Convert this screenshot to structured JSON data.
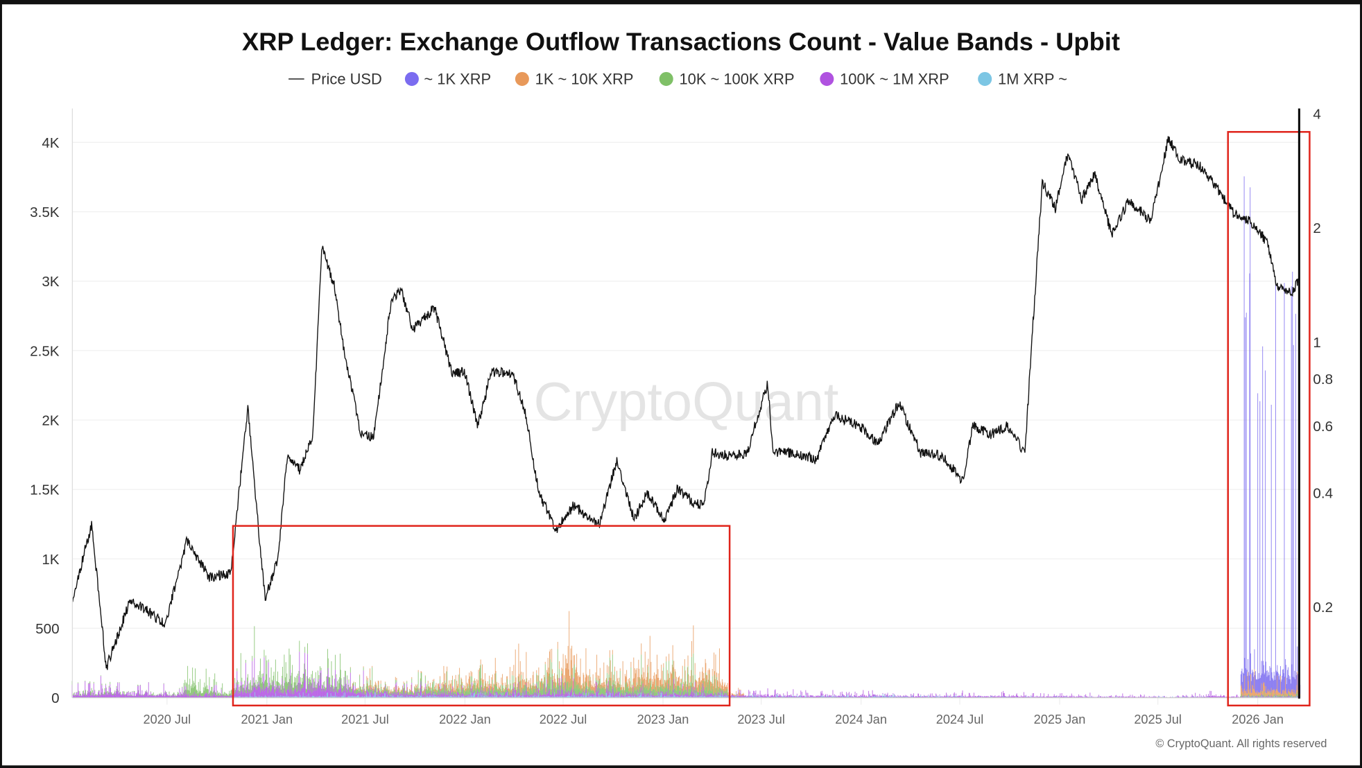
{
  "chart_data": {
    "type": "bar",
    "title": "XRP Ledger: Exchange Outflow Transactions Count - Value Bands - Upbit",
    "legend_position": "top",
    "legend": [
      {
        "name": "Price USD",
        "kind": "line",
        "color": "#111111"
      },
      {
        "name": "~ 1K XRP",
        "kind": "bar",
        "color": "#7b6cf0"
      },
      {
        "name": "1K ~ 10K XRP",
        "kind": "bar",
        "color": "#e8995a"
      },
      {
        "name": "10K ~ 100K XRP",
        "kind": "bar",
        "color": "#7fc067"
      },
      {
        "name": "100K ~ 1M XRP",
        "kind": "bar",
        "color": "#b052e0"
      },
      {
        "name": "1M XRP ~",
        "kind": "bar",
        "color": "#7cc6e4"
      }
    ],
    "x_range": [
      "2020-01-08",
      "2026-03-20"
    ],
    "x_ticks": [
      "2020 Jul",
      "2021 Jan",
      "2021 Jul",
      "2022 Jan",
      "2022 Jul",
      "2023 Jan",
      "2023 Jul",
      "2024 Jan",
      "2024 Jul",
      "2025 Jan",
      "2025 Jul",
      "2026 Jan"
    ],
    "x_tick_dates": [
      "2020-07-01",
      "2021-01-01",
      "2021-07-01",
      "2022-01-01",
      "2022-07-01",
      "2023-01-01",
      "2023-07-01",
      "2024-01-01",
      "2024-07-01",
      "2025-01-01",
      "2025-07-01",
      "2026-01-01"
    ],
    "y_left": {
      "label": "",
      "range": [
        0,
        4000
      ],
      "ticks": [
        "0",
        "500",
        "1K",
        "1.5K",
        "2K",
        "2.5K",
        "3K",
        "3.5K",
        "4K"
      ],
      "tick_values": [
        0,
        500,
        1000,
        1500,
        2000,
        2500,
        3000,
        3500,
        4000
      ],
      "grid": true
    },
    "y_right": {
      "label": "",
      "scale": "log",
      "ticks": [
        "0.2",
        "0.4",
        "0.6",
        "0.8",
        "1",
        "2",
        "4"
      ],
      "tick_values": [
        0.2,
        0.4,
        0.6,
        0.8,
        1,
        2,
        4
      ]
    },
    "bar_months": [
      "2020-01",
      "2020-02",
      "2020-03",
      "2020-04",
      "2020-05",
      "2020-06",
      "2020-07",
      "2020-08",
      "2020-09",
      "2020-10",
      "2020-11",
      "2020-12",
      "2021-01",
      "2021-02",
      "2021-03",
      "2021-04",
      "2021-05",
      "2021-06",
      "2021-07",
      "2021-08",
      "2021-09",
      "2021-10",
      "2021-11",
      "2021-12",
      "2022-01",
      "2022-02",
      "2022-03",
      "2022-04",
      "2022-05",
      "2022-06",
      "2022-07",
      "2022-08",
      "2022-09",
      "2022-10",
      "2022-11",
      "2022-12",
      "2023-01",
      "2023-02",
      "2023-03",
      "2023-04",
      "2023-05",
      "2023-06",
      "2023-07",
      "2023-08",
      "2023-09",
      "2023-10",
      "2023-11",
      "2023-12",
      "2024-01",
      "2024-02",
      "2024-03",
      "2024-04",
      "2024-05",
      "2024-06",
      "2024-07",
      "2024-08",
      "2024-09",
      "2024-10",
      "2024-11",
      "2024-12",
      "2025-01",
      "2025-02",
      "2025-03",
      "2025-04",
      "2025-05",
      "2025-06",
      "2025-07",
      "2025-08",
      "2025-09",
      "2025-10",
      "2025-11",
      "2025-12",
      "2026-01",
      "2026-02",
      "2026-03"
    ],
    "series_monthly_peak": [
      {
        "name": "1M XRP ~",
        "values": [
          5,
          5,
          5,
          5,
          5,
          5,
          5,
          5,
          5,
          5,
          30,
          40,
          40,
          40,
          40,
          40,
          40,
          40,
          40,
          40,
          40,
          40,
          40,
          40,
          40,
          40,
          40,
          40,
          40,
          40,
          40,
          40,
          40,
          40,
          40,
          40,
          40,
          40,
          40,
          40,
          30,
          30,
          25,
          20,
          20,
          20,
          20,
          20,
          25,
          30,
          25,
          20,
          20,
          20,
          15,
          15,
          15,
          15,
          15,
          15,
          10,
          10,
          10,
          10,
          10,
          10,
          10,
          10,
          10,
          10,
          10,
          15,
          15,
          15,
          15
        ]
      },
      {
        "name": "100K ~ 1M XRP",
        "values": [
          120,
          130,
          200,
          120,
          110,
          100,
          80,
          100,
          90,
          60,
          250,
          300,
          300,
          250,
          350,
          450,
          350,
          200,
          150,
          120,
          100,
          110,
          100,
          90,
          100,
          90,
          80,
          110,
          100,
          150,
          120,
          100,
          110,
          90,
          100,
          90,
          100,
          90,
          90,
          80,
          60,
          50,
          60,
          50,
          40,
          50,
          40,
          40,
          50,
          40,
          40,
          30,
          30,
          40,
          40,
          30,
          40,
          40,
          30,
          30,
          30,
          30,
          20,
          30,
          20,
          20,
          10,
          20,
          30,
          60,
          20,
          20,
          20,
          20,
          20
        ]
      },
      {
        "name": "10K ~ 100K XRP",
        "values": [
          30,
          40,
          50,
          20,
          20,
          20,
          20,
          250,
          200,
          100,
          200,
          250,
          200,
          250,
          300,
          200,
          250,
          150,
          150,
          100,
          100,
          150,
          200,
          150,
          200,
          150,
          150,
          200,
          250,
          300,
          250,
          150,
          250,
          200,
          250,
          250,
          250,
          250,
          200,
          150,
          0,
          0,
          0,
          0,
          0,
          0,
          0,
          0,
          0,
          0,
          0,
          0,
          0,
          0,
          0,
          0,
          0,
          0,
          0,
          0,
          0,
          0,
          0,
          0,
          0,
          0,
          0,
          0,
          0,
          0,
          0,
          30,
          40,
          40,
          40
        ]
      },
      {
        "name": "1K ~ 10K XRP",
        "values": [
          0,
          0,
          0,
          0,
          0,
          0,
          0,
          0,
          0,
          0,
          0,
          0,
          0,
          0,
          0,
          0,
          0,
          30,
          80,
          60,
          60,
          80,
          150,
          100,
          150,
          200,
          100,
          250,
          200,
          200,
          600,
          300,
          200,
          200,
          300,
          350,
          350,
          250,
          300,
          300,
          50,
          0,
          0,
          0,
          0,
          0,
          0,
          0,
          0,
          0,
          0,
          0,
          0,
          0,
          0,
          0,
          0,
          0,
          0,
          0,
          0,
          0,
          0,
          0,
          0,
          0,
          0,
          0,
          0,
          0,
          0,
          200,
          200,
          150,
          150
        ]
      },
      {
        "name": "~ 1K XRP",
        "values": [
          0,
          0,
          0,
          0,
          0,
          0,
          0,
          0,
          0,
          0,
          0,
          0,
          0,
          0,
          0,
          0,
          0,
          0,
          0,
          0,
          0,
          0,
          0,
          0,
          0,
          0,
          0,
          0,
          0,
          0,
          0,
          0,
          0,
          0,
          0,
          0,
          0,
          0,
          0,
          0,
          0,
          0,
          0,
          0,
          0,
          0,
          0,
          0,
          0,
          0,
          0,
          0,
          0,
          0,
          0,
          0,
          0,
          0,
          0,
          0,
          0,
          0,
          0,
          0,
          0,
          0,
          0,
          0,
          0,
          0,
          0,
          3700,
          3300,
          4000,
          3600
        ]
      }
    ],
    "price_usd": [
      [
        "2020-01-09",
        0.21
      ],
      [
        "2020-02-13",
        0.33
      ],
      [
        "2020-03-11",
        0.138
      ],
      [
        "2020-04-25",
        0.21
      ],
      [
        "2020-06-28",
        0.18
      ],
      [
        "2020-08-07",
        0.3
      ],
      [
        "2020-09-16",
        0.24
      ],
      [
        "2020-10-26",
        0.245
      ],
      [
        "2020-11-27",
        0.67
      ],
      [
        "2020-12-21",
        0.27
      ],
      [
        "2020-12-29",
        0.21
      ],
      [
        "2021-01-22",
        0.27
      ],
      [
        "2021-02-07",
        0.49
      ],
      [
        "2021-03-03",
        0.46
      ],
      [
        "2021-03-27",
        0.57
      ],
      [
        "2021-04-12",
        1.78
      ],
      [
        "2021-05-06",
        1.4
      ],
      [
        "2021-05-22",
        0.97
      ],
      [
        "2021-06-23",
        0.57
      ],
      [
        "2021-07-17",
        0.56
      ],
      [
        "2021-08-18",
        1.29
      ],
      [
        "2021-09-06",
        1.36
      ],
      [
        "2021-09-27",
        1.08
      ],
      [
        "2021-11-06",
        1.23
      ],
      [
        "2021-12-08",
        0.83
      ],
      [
        "2022-01-01",
        0.83
      ],
      [
        "2022-01-25",
        0.6
      ],
      [
        "2022-02-18",
        0.83
      ],
      [
        "2022-03-30",
        0.83
      ],
      [
        "2022-04-23",
        0.64
      ],
      [
        "2022-05-17",
        0.4
      ],
      [
        "2022-06-18",
        0.32
      ],
      [
        "2022-07-20",
        0.37
      ],
      [
        "2022-09-06",
        0.33
      ],
      [
        "2022-10-08",
        0.49
      ],
      [
        "2022-11-09",
        0.34
      ],
      [
        "2022-12-03",
        0.4
      ],
      [
        "2023-01-04",
        0.34
      ],
      [
        "2023-01-28",
        0.41
      ],
      [
        "2023-03-01",
        0.375
      ],
      [
        "2023-03-17",
        0.37
      ],
      [
        "2023-04-02",
        0.51
      ],
      [
        "2023-05-04",
        0.5
      ],
      [
        "2023-06-05",
        0.51
      ],
      [
        "2023-07-13",
        0.78
      ],
      [
        "2023-07-23",
        0.51
      ],
      [
        "2023-08-24",
        0.51
      ],
      [
        "2023-10-11",
        0.49
      ],
      [
        "2023-11-12",
        0.64
      ],
      [
        "2023-12-30",
        0.6
      ],
      [
        "2024-01-31",
        0.54
      ],
      [
        "2024-03-11",
        0.69
      ],
      [
        "2024-04-20",
        0.51
      ],
      [
        "2024-05-30",
        0.5
      ],
      [
        "2024-07-06",
        0.43
      ],
      [
        "2024-07-25",
        0.6
      ],
      [
        "2024-08-26",
        0.57
      ],
      [
        "2024-09-27",
        0.6
      ],
      [
        "2024-10-29",
        0.51
      ],
      [
        "2024-11-11",
        1.02
      ],
      [
        "2024-11-30",
        2.64
      ],
      [
        "2024-12-24",
        2.25
      ],
      [
        "2025-01-17",
        3.17
      ],
      [
        "2025-02-10",
        2.37
      ],
      [
        "2025-03-06",
        2.78
      ],
      [
        "2025-04-07",
        1.92
      ],
      [
        "2025-05-09",
        2.37
      ],
      [
        "2025-06-18",
        2.08
      ],
      [
        "2025-07-20",
        3.43
      ],
      [
        "2025-08-13",
        3.01
      ],
      [
        "2025-09-14",
        2.93
      ],
      [
        "2025-10-16",
        2.57
      ],
      [
        "2025-11-17",
        2.19
      ],
      [
        "2025-12-19",
        2.08
      ],
      [
        "2026-01-20",
        1.82
      ],
      [
        "2026-02-05",
        1.4
      ],
      [
        "2026-03-09",
        1.36
      ],
      [
        "2026-03-17",
        1.48
      ]
    ],
    "annotations": [
      {
        "type": "highlight-box",
        "color": "#e0241b",
        "from": "2020-11",
        "to": "2023-05"
      },
      {
        "type": "highlight-box",
        "color": "#e0241b",
        "from": "2025-11",
        "to": "2026-03"
      }
    ],
    "watermark": "CryptoQuant",
    "copyright": "© CryptoQuant. All rights reserved"
  }
}
